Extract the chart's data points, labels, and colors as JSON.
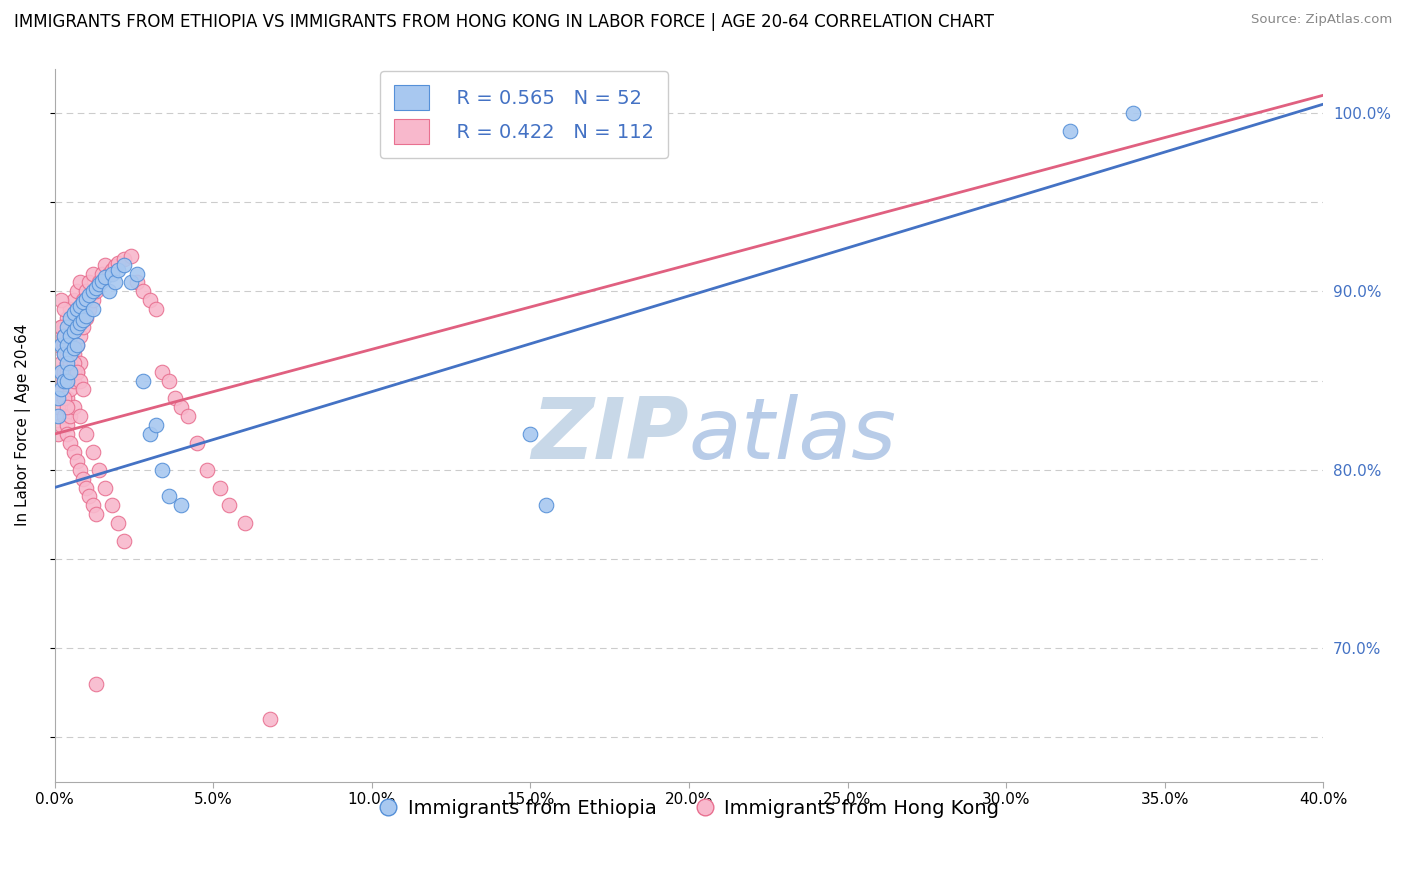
{
  "title": "IMMIGRANTS FROM ETHIOPIA VS IMMIGRANTS FROM HONG KONG IN LABOR FORCE | AGE 20-64 CORRELATION CHART",
  "source_text": "Source: ZipAtlas.com",
  "ylabel": "In Labor Force | Age 20-64",
  "xlabel_ethiopia": "Immigrants from Ethiopia",
  "xlabel_hongkong": "Immigrants from Hong Kong",
  "watermark_zip": "ZIP",
  "watermark_atlas": "atlas",
  "xlim": [
    0.0,
    0.4
  ],
  "ylim": [
    0.625,
    1.025
  ],
  "xticks": [
    0.0,
    0.05,
    0.1,
    0.15,
    0.2,
    0.25,
    0.3,
    0.35,
    0.4
  ],
  "yticks": [
    0.65,
    0.7,
    0.75,
    0.8,
    0.85,
    0.9,
    0.95,
    1.0
  ],
  "xtick_labels": [
    "0.0%",
    "5.0%",
    "10.0%",
    "15.0%",
    "20.0%",
    "25.0%",
    "30.0%",
    "35.0%",
    "40.0%"
  ],
  "ethiopia_color": "#a8c8f0",
  "hongkong_color": "#f8b8cc",
  "ethiopia_edge_color": "#5590d8",
  "hongkong_edge_color": "#e87090",
  "ethiopia_line_color": "#4472c4",
  "hongkong_line_color": "#e06080",
  "ethiopia_R": 0.565,
  "ethiopia_N": 52,
  "hongkong_R": 0.422,
  "hongkong_N": 112,
  "ethiopia_scatter_x": [
    0.001,
    0.001,
    0.002,
    0.002,
    0.002,
    0.003,
    0.003,
    0.003,
    0.004,
    0.004,
    0.004,
    0.004,
    0.005,
    0.005,
    0.005,
    0.005,
    0.006,
    0.006,
    0.006,
    0.007,
    0.007,
    0.007,
    0.008,
    0.008,
    0.009,
    0.009,
    0.01,
    0.01,
    0.011,
    0.012,
    0.012,
    0.013,
    0.014,
    0.015,
    0.016,
    0.017,
    0.018,
    0.019,
    0.02,
    0.022,
    0.024,
    0.026,
    0.028,
    0.03,
    0.032,
    0.034,
    0.036,
    0.04,
    0.15,
    0.155,
    0.32,
    0.34
  ],
  "ethiopia_scatter_y": [
    0.84,
    0.83,
    0.87,
    0.855,
    0.845,
    0.875,
    0.865,
    0.85,
    0.88,
    0.87,
    0.86,
    0.85,
    0.885,
    0.875,
    0.865,
    0.855,
    0.888,
    0.878,
    0.868,
    0.89,
    0.88,
    0.87,
    0.892,
    0.882,
    0.894,
    0.884,
    0.896,
    0.886,
    0.898,
    0.9,
    0.89,
    0.902,
    0.904,
    0.906,
    0.908,
    0.9,
    0.91,
    0.905,
    0.912,
    0.915,
    0.905,
    0.91,
    0.85,
    0.82,
    0.825,
    0.8,
    0.785,
    0.78,
    0.82,
    0.78,
    0.99,
    1.0
  ],
  "hongkong_scatter_x": [
    0.001,
    0.001,
    0.001,
    0.001,
    0.001,
    0.002,
    0.002,
    0.002,
    0.002,
    0.002,
    0.002,
    0.003,
    0.003,
    0.003,
    0.003,
    0.003,
    0.003,
    0.004,
    0.004,
    0.004,
    0.004,
    0.004,
    0.004,
    0.004,
    0.005,
    0.005,
    0.005,
    0.005,
    0.005,
    0.005,
    0.005,
    0.006,
    0.006,
    0.006,
    0.006,
    0.006,
    0.007,
    0.007,
    0.007,
    0.007,
    0.008,
    0.008,
    0.008,
    0.008,
    0.009,
    0.009,
    0.01,
    0.01,
    0.011,
    0.011,
    0.012,
    0.012,
    0.013,
    0.014,
    0.015,
    0.016,
    0.017,
    0.018,
    0.019,
    0.02,
    0.022,
    0.024,
    0.026,
    0.028,
    0.03,
    0.032,
    0.034,
    0.036,
    0.038,
    0.04,
    0.042,
    0.045,
    0.048,
    0.052,
    0.055,
    0.06,
    0.008,
    0.01,
    0.012,
    0.014,
    0.016,
    0.018,
    0.02,
    0.022,
    0.004,
    0.005,
    0.006,
    0.007,
    0.008,
    0.009,
    0.01,
    0.011,
    0.012,
    0.013,
    0.003,
    0.004,
    0.005,
    0.006,
    0.002,
    0.003,
    0.004,
    0.005,
    0.006,
    0.007,
    0.008,
    0.009,
    0.003,
    0.004,
    0.002,
    0.003,
    0.013,
    0.068
  ],
  "hongkong_scatter_y": [
    0.84,
    0.855,
    0.82,
    0.87,
    0.835,
    0.845,
    0.86,
    0.875,
    0.825,
    0.85,
    0.88,
    0.85,
    0.865,
    0.88,
    0.83,
    0.855,
    0.87,
    0.855,
    0.87,
    0.84,
    0.885,
    0.825,
    0.86,
    0.875,
    0.86,
    0.875,
    0.845,
    0.89,
    0.83,
    0.865,
    0.88,
    0.865,
    0.88,
    0.85,
    0.895,
    0.835,
    0.87,
    0.885,
    0.855,
    0.9,
    0.875,
    0.89,
    0.86,
    0.905,
    0.88,
    0.895,
    0.885,
    0.9,
    0.89,
    0.905,
    0.895,
    0.91,
    0.9,
    0.905,
    0.91,
    0.915,
    0.91,
    0.912,
    0.914,
    0.916,
    0.918,
    0.92,
    0.905,
    0.9,
    0.895,
    0.89,
    0.855,
    0.85,
    0.84,
    0.835,
    0.83,
    0.815,
    0.8,
    0.79,
    0.78,
    0.77,
    0.83,
    0.82,
    0.81,
    0.8,
    0.79,
    0.78,
    0.77,
    0.76,
    0.82,
    0.815,
    0.81,
    0.805,
    0.8,
    0.795,
    0.79,
    0.785,
    0.78,
    0.775,
    0.87,
    0.865,
    0.86,
    0.855,
    0.88,
    0.875,
    0.87,
    0.865,
    0.86,
    0.855,
    0.85,
    0.845,
    0.84,
    0.835,
    0.895,
    0.89,
    0.68,
    0.66
  ],
  "background_color": "#ffffff",
  "grid_color": "#cccccc",
  "title_fontsize": 12,
  "axis_label_fontsize": 11,
  "tick_fontsize": 11,
  "legend_fontsize": 14,
  "watermark_zip_color": "#c8d8e8",
  "watermark_atlas_color": "#b8cce8",
  "right_ytick_color": "#4472c4",
  "right_ytick_labels": [
    "100.0%",
    "90.0%",
    "80.0%",
    "70.0%"
  ],
  "right_ytick_positions": [
    1.0,
    0.9,
    0.8,
    0.7
  ],
  "ethiopia_line_x0": 0.0,
  "ethiopia_line_y0": 0.79,
  "ethiopia_line_x1": 0.4,
  "ethiopia_line_y1": 1.005,
  "hongkong_line_x0": 0.0,
  "hongkong_line_y0": 0.82,
  "hongkong_line_x1": 0.4,
  "hongkong_line_y1": 1.01
}
